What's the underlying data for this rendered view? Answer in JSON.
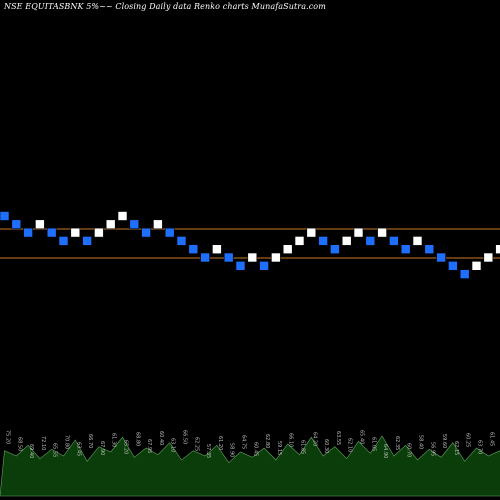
{
  "chart_data": {
    "type": "renko",
    "title": "NSE EQUITASBNK 5%~~  Closing Daily data  Renko  charts MunafaSutra.com",
    "colors": {
      "background": "#000000",
      "up_brick": "#ffffff",
      "down_brick": "#1f6fff",
      "reference_line": "#c87a2a",
      "volume_fill": "#0a3d0a",
      "volume_stroke": "#5fa85f",
      "label": "#bfbfbf"
    },
    "reference_lines": [
      0,
      2.5
    ],
    "bricks": [
      {
        "dir": "down",
        "level": 0
      },
      {
        "dir": "down",
        "level": -1
      },
      {
        "dir": "down",
        "level": -2
      },
      {
        "dir": "up",
        "level": -1
      },
      {
        "dir": "down",
        "level": -2
      },
      {
        "dir": "down",
        "level": -3
      },
      {
        "dir": "up",
        "level": -2
      },
      {
        "dir": "down",
        "level": -3
      },
      {
        "dir": "up",
        "level": -2
      },
      {
        "dir": "up",
        "level": -1
      },
      {
        "dir": "up",
        "level": 0
      },
      {
        "dir": "down",
        "level": -1
      },
      {
        "dir": "down",
        "level": -2
      },
      {
        "dir": "up",
        "level": -1
      },
      {
        "dir": "down",
        "level": -2
      },
      {
        "dir": "down",
        "level": -3
      },
      {
        "dir": "down",
        "level": -4
      },
      {
        "dir": "down",
        "level": -5
      },
      {
        "dir": "up",
        "level": -4
      },
      {
        "dir": "down",
        "level": -5
      },
      {
        "dir": "down",
        "level": -6
      },
      {
        "dir": "up",
        "level": -5
      },
      {
        "dir": "down",
        "level": -6
      },
      {
        "dir": "up",
        "level": -5
      },
      {
        "dir": "up",
        "level": -4
      },
      {
        "dir": "up",
        "level": -3
      },
      {
        "dir": "up",
        "level": -2
      },
      {
        "dir": "down",
        "level": -3
      },
      {
        "dir": "down",
        "level": -4
      },
      {
        "dir": "up",
        "level": -3
      },
      {
        "dir": "up",
        "level": -2
      },
      {
        "dir": "down",
        "level": -3
      },
      {
        "dir": "up",
        "level": -2
      },
      {
        "dir": "down",
        "level": -3
      },
      {
        "dir": "down",
        "level": -4
      },
      {
        "dir": "up",
        "level": -3
      },
      {
        "dir": "down",
        "level": -4
      },
      {
        "dir": "down",
        "level": -5
      },
      {
        "dir": "down",
        "level": -6
      },
      {
        "dir": "down",
        "level": -7
      },
      {
        "dir": "up",
        "level": -6
      },
      {
        "dir": "up",
        "level": -5
      },
      {
        "dir": "up",
        "level": -4
      },
      {
        "dir": "down",
        "level": -5
      },
      {
        "dir": "up",
        "level": -4
      },
      {
        "dir": "down",
        "level": -5
      },
      {
        "dir": "up",
        "level": -4
      },
      {
        "dir": "down",
        "level": -5
      }
    ],
    "volume_profile": [
      34,
      30,
      38,
      28,
      35,
      30,
      42,
      26,
      37,
      33,
      44,
      29,
      36,
      31,
      40,
      27,
      34,
      30,
      38,
      25,
      33,
      29,
      36,
      27,
      39,
      31,
      44,
      30,
      37,
      28,
      41,
      32,
      45,
      30,
      38,
      27,
      35,
      29,
      40,
      26,
      36,
      30,
      34,
      28,
      31,
      27,
      30,
      25
    ],
    "price_labels": [
      "75.20",
      "68.50",
      "69.40",
      "72.10",
      "65.55",
      "70.80",
      "63.45",
      "66.70",
      "67.90",
      "61.30",
      "65.20",
      "68.80",
      "67.95",
      "60.40",
      "63.10",
      "66.50",
      "62.25",
      "57.35",
      "61.20",
      "58.90",
      "64.75",
      "60.45",
      "62.80",
      "59.15",
      "66.10",
      "61.85",
      "64.20",
      "60.30",
      "63.55",
      "62.10",
      "65.40",
      "61.05",
      "64.90",
      "62.35",
      "60.70",
      "58.40",
      "56.95",
      "59.60",
      "62.15",
      "60.25",
      "63.70",
      "61.45",
      "64.10",
      "62.80",
      "60.55",
      "62.35",
      "61.10",
      "62.05"
    ]
  }
}
